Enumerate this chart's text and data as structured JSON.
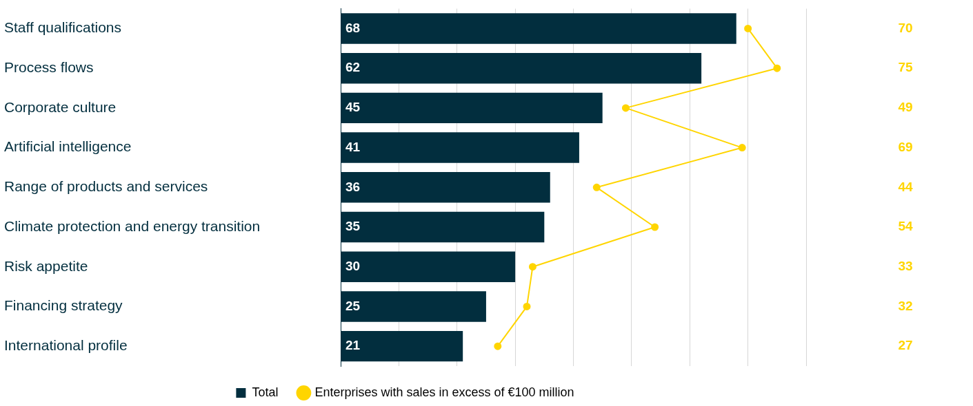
{
  "chart_data": {
    "type": "bar",
    "orientation": "horizontal",
    "categories": [
      "Staff qualifications",
      "Process flows",
      "Corporate culture",
      "Artificial intelligence",
      "Range of products and services",
      "Climate protection and energy transition",
      "Risk appetite",
      "Financing strategy",
      "International profile"
    ],
    "series": [
      {
        "name": "Total",
        "color": "#022e3e",
        "values": [
          68,
          62,
          45,
          41,
          36,
          35,
          30,
          25,
          21
        ]
      },
      {
        "name": "Enterprises with sales in excess of €100 million",
        "type": "line",
        "color": "#ffd500",
        "values": [
          70,
          75,
          49,
          69,
          44,
          54,
          33,
          32,
          27
        ]
      }
    ],
    "xlim": [
      0,
      80
    ],
    "xticks": [
      {
        "value": 0,
        "label": null
      },
      {
        "value": 10,
        "label": null
      },
      {
        "value": 20,
        "label": null
      },
      {
        "value": 30,
        "label": null
      },
      {
        "value": 40,
        "label": null
      },
      {
        "value": 50,
        "label": null
      },
      {
        "value": 60,
        "label": null
      },
      {
        "value": 70,
        "label": null
      },
      {
        "value": 80,
        "label": null
      }
    ],
    "grid": "x",
    "legend": "bottom",
    "marker": "circle",
    "line_style": "solid",
    "data_labels": true,
    "tick_labels": "y"
  }
}
